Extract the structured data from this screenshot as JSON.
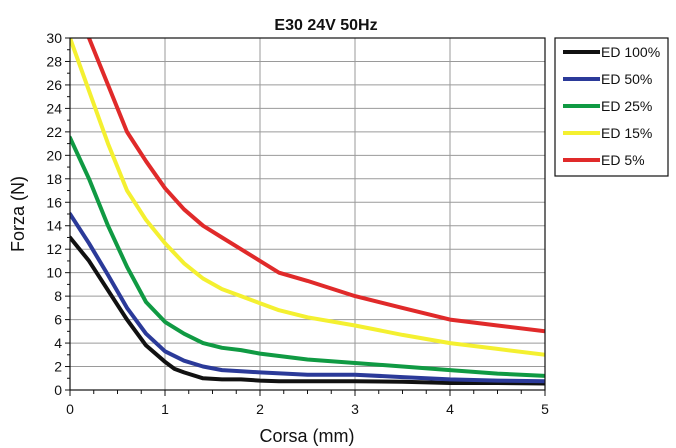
{
  "chart_data": {
    "type": "line",
    "title": "E30 24V 50Hz",
    "xlabel": "Corsa (mm)",
    "ylabel": "Forza (N)",
    "xlim": [
      0,
      5
    ],
    "ylim": [
      0,
      30
    ],
    "xticks": [
      0,
      1,
      2,
      3,
      4,
      5
    ],
    "yticks": [
      0,
      2,
      4,
      6,
      8,
      10,
      12,
      14,
      16,
      18,
      20,
      22,
      24,
      26,
      28,
      30
    ],
    "grid": true,
    "legend_position": "top-right, outside plot",
    "series": [
      {
        "name": "ED 100%",
        "color": "#111111",
        "x": [
          0,
          0.2,
          0.4,
          0.6,
          0.8,
          1.0,
          1.1,
          1.2,
          1.4,
          1.6,
          1.8,
          2.0,
          2.2,
          2.5,
          3.0,
          3.5,
          4.0,
          4.5,
          5.0
        ],
        "y": [
          13.0,
          11.0,
          8.5,
          6.0,
          3.8,
          2.4,
          1.8,
          1.5,
          1.0,
          0.9,
          0.9,
          0.8,
          0.75,
          0.75,
          0.75,
          0.7,
          0.6,
          0.6,
          0.55
        ]
      },
      {
        "name": "ED 50%",
        "color": "#2b3a99",
        "x": [
          0,
          0.2,
          0.4,
          0.6,
          0.8,
          1.0,
          1.2,
          1.4,
          1.6,
          1.8,
          2.0,
          2.5,
          3.0,
          3.5,
          4.0,
          4.5,
          5.0
        ],
        "y": [
          15.0,
          12.5,
          9.8,
          7.0,
          4.8,
          3.3,
          2.5,
          2.0,
          1.7,
          1.6,
          1.5,
          1.3,
          1.3,
          1.1,
          0.9,
          0.8,
          0.75
        ]
      },
      {
        "name": "ED 25%",
        "color": "#109a43",
        "x": [
          0,
          0.2,
          0.4,
          0.6,
          0.8,
          1.0,
          1.2,
          1.4,
          1.6,
          1.8,
          2.0,
          2.5,
          3.0,
          3.5,
          4.0,
          4.5,
          5.0
        ],
        "y": [
          21.5,
          18.0,
          14.0,
          10.5,
          7.5,
          5.8,
          4.8,
          4.0,
          3.6,
          3.4,
          3.1,
          2.6,
          2.3,
          2.0,
          1.7,
          1.4,
          1.2
        ]
      },
      {
        "name": "ED 15%",
        "color": "#f4f030",
        "x": [
          0,
          0.2,
          0.4,
          0.6,
          0.8,
          1.0,
          1.2,
          1.4,
          1.6,
          1.8,
          2.0,
          2.2,
          2.5,
          3.0,
          3.5,
          4.0,
          4.5,
          5.0
        ],
        "y": [
          30.0,
          25.5,
          21.0,
          17.0,
          14.5,
          12.5,
          10.8,
          9.5,
          8.6,
          8.0,
          7.4,
          6.8,
          6.2,
          5.5,
          4.7,
          4.0,
          3.5,
          3.0
        ]
      },
      {
        "name": "ED 5%",
        "color": "#e02a2a",
        "x": [
          0.2,
          0.3,
          0.4,
          0.5,
          0.6,
          0.8,
          1.0,
          1.2,
          1.4,
          1.6,
          1.8,
          2.0,
          2.2,
          2.5,
          3.0,
          3.5,
          4.0,
          4.5,
          5.0
        ],
        "y": [
          30.0,
          28.0,
          26.0,
          24.0,
          22.0,
          19.5,
          17.2,
          15.4,
          14.0,
          13.0,
          12.0,
          11.0,
          10.0,
          9.3,
          8.0,
          7.0,
          6.0,
          5.5,
          5.0
        ]
      }
    ]
  }
}
